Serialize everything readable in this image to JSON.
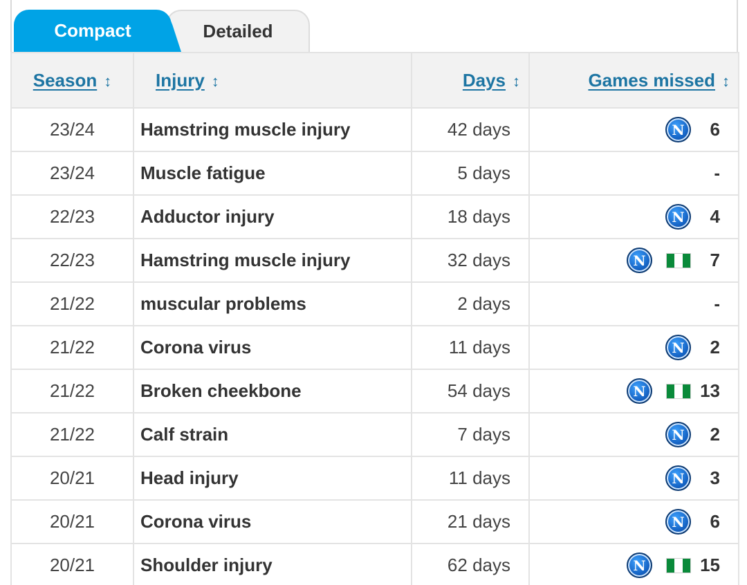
{
  "tabs": [
    {
      "label": "Compact",
      "active": true
    },
    {
      "label": "Detailed",
      "active": false
    }
  ],
  "table": {
    "headers": {
      "season": "Season",
      "injury": "Injury",
      "days": "Days",
      "games_missed": "Games missed"
    },
    "sort_icon": "↕",
    "rows": [
      {
        "season": "23/24",
        "injury": "Hamstring muscle injury",
        "days": "42 days",
        "club": true,
        "national": false,
        "games": "6"
      },
      {
        "season": "23/24",
        "injury": "Muscle fatigue",
        "days": "5 days",
        "club": false,
        "national": false,
        "games": "-"
      },
      {
        "season": "22/23",
        "injury": "Adductor injury",
        "days": "18 days",
        "club": true,
        "national": false,
        "games": "4"
      },
      {
        "season": "22/23",
        "injury": "Hamstring muscle injury",
        "days": "32 days",
        "club": true,
        "national": true,
        "games": "7"
      },
      {
        "season": "21/22",
        "injury": "muscular problems",
        "days": "2 days",
        "club": false,
        "national": false,
        "games": "-"
      },
      {
        "season": "21/22",
        "injury": "Corona virus",
        "days": "11 days",
        "club": true,
        "national": false,
        "games": "2"
      },
      {
        "season": "21/22",
        "injury": "Broken cheekbone",
        "days": "54 days",
        "club": true,
        "national": true,
        "games": "13"
      },
      {
        "season": "21/22",
        "injury": "Calf strain",
        "days": "7 days",
        "club": true,
        "national": false,
        "games": "2"
      },
      {
        "season": "20/21",
        "injury": "Head injury",
        "days": "11 days",
        "club": true,
        "national": false,
        "games": "3"
      },
      {
        "season": "20/21",
        "injury": "Corona virus",
        "days": "21 days",
        "club": true,
        "national": false,
        "games": "6"
      },
      {
        "season": "20/21",
        "injury": "Shoulder injury",
        "days": "62 days",
        "club": true,
        "national": true,
        "games": "15"
      }
    ]
  },
  "club_logo_letter": "N",
  "colors": {
    "active_tab": "#00a3e6",
    "header_link": "#1d75a3",
    "flag_green": "#0a8a3a",
    "club_blue": "#1563c4"
  },
  "icons": {
    "club": "club-logo-icon",
    "national": "nigeria-flag-icon",
    "sort": "sort-icon"
  }
}
